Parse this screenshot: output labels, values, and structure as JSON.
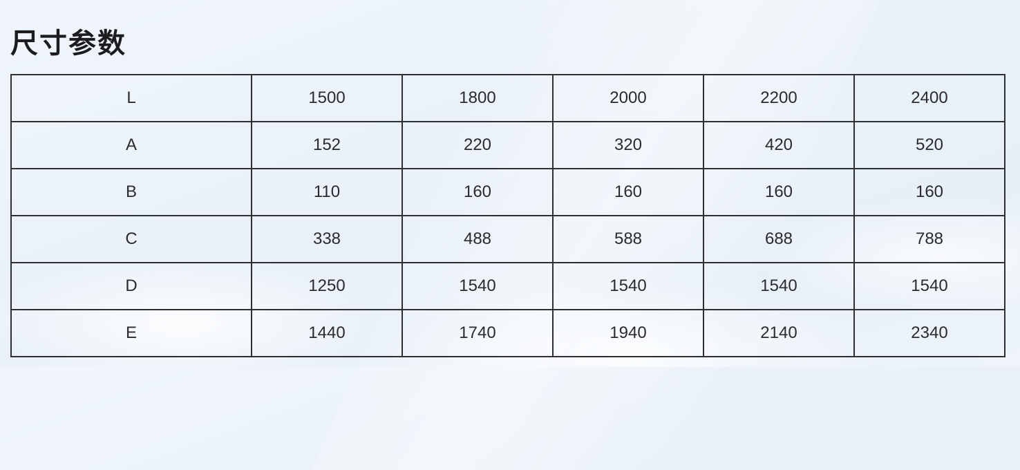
{
  "page": {
    "title": "尺寸参数"
  },
  "table": {
    "rows": [
      {
        "cells": [
          "L",
          "1500",
          "1800",
          "2000",
          "2200",
          "2400"
        ]
      },
      {
        "cells": [
          "A",
          "152",
          "220",
          "320",
          "420",
          "520"
        ]
      },
      {
        "cells": [
          "B",
          "110",
          "160",
          "160",
          "160",
          "160"
        ]
      },
      {
        "cells": [
          "C",
          "338",
          "488",
          "588",
          "688",
          "788"
        ]
      },
      {
        "cells": [
          "D",
          "1250",
          "1540",
          "1540",
          "1540",
          "1540"
        ]
      },
      {
        "cells": [
          "E",
          "1440",
          "1740",
          "1940",
          "2140",
          "2340"
        ]
      }
    ]
  },
  "colors": {
    "border": "#2e2e30",
    "text": "#2b2b2d",
    "title_text": "#1c1c1e",
    "background": "#eaf1f9"
  }
}
